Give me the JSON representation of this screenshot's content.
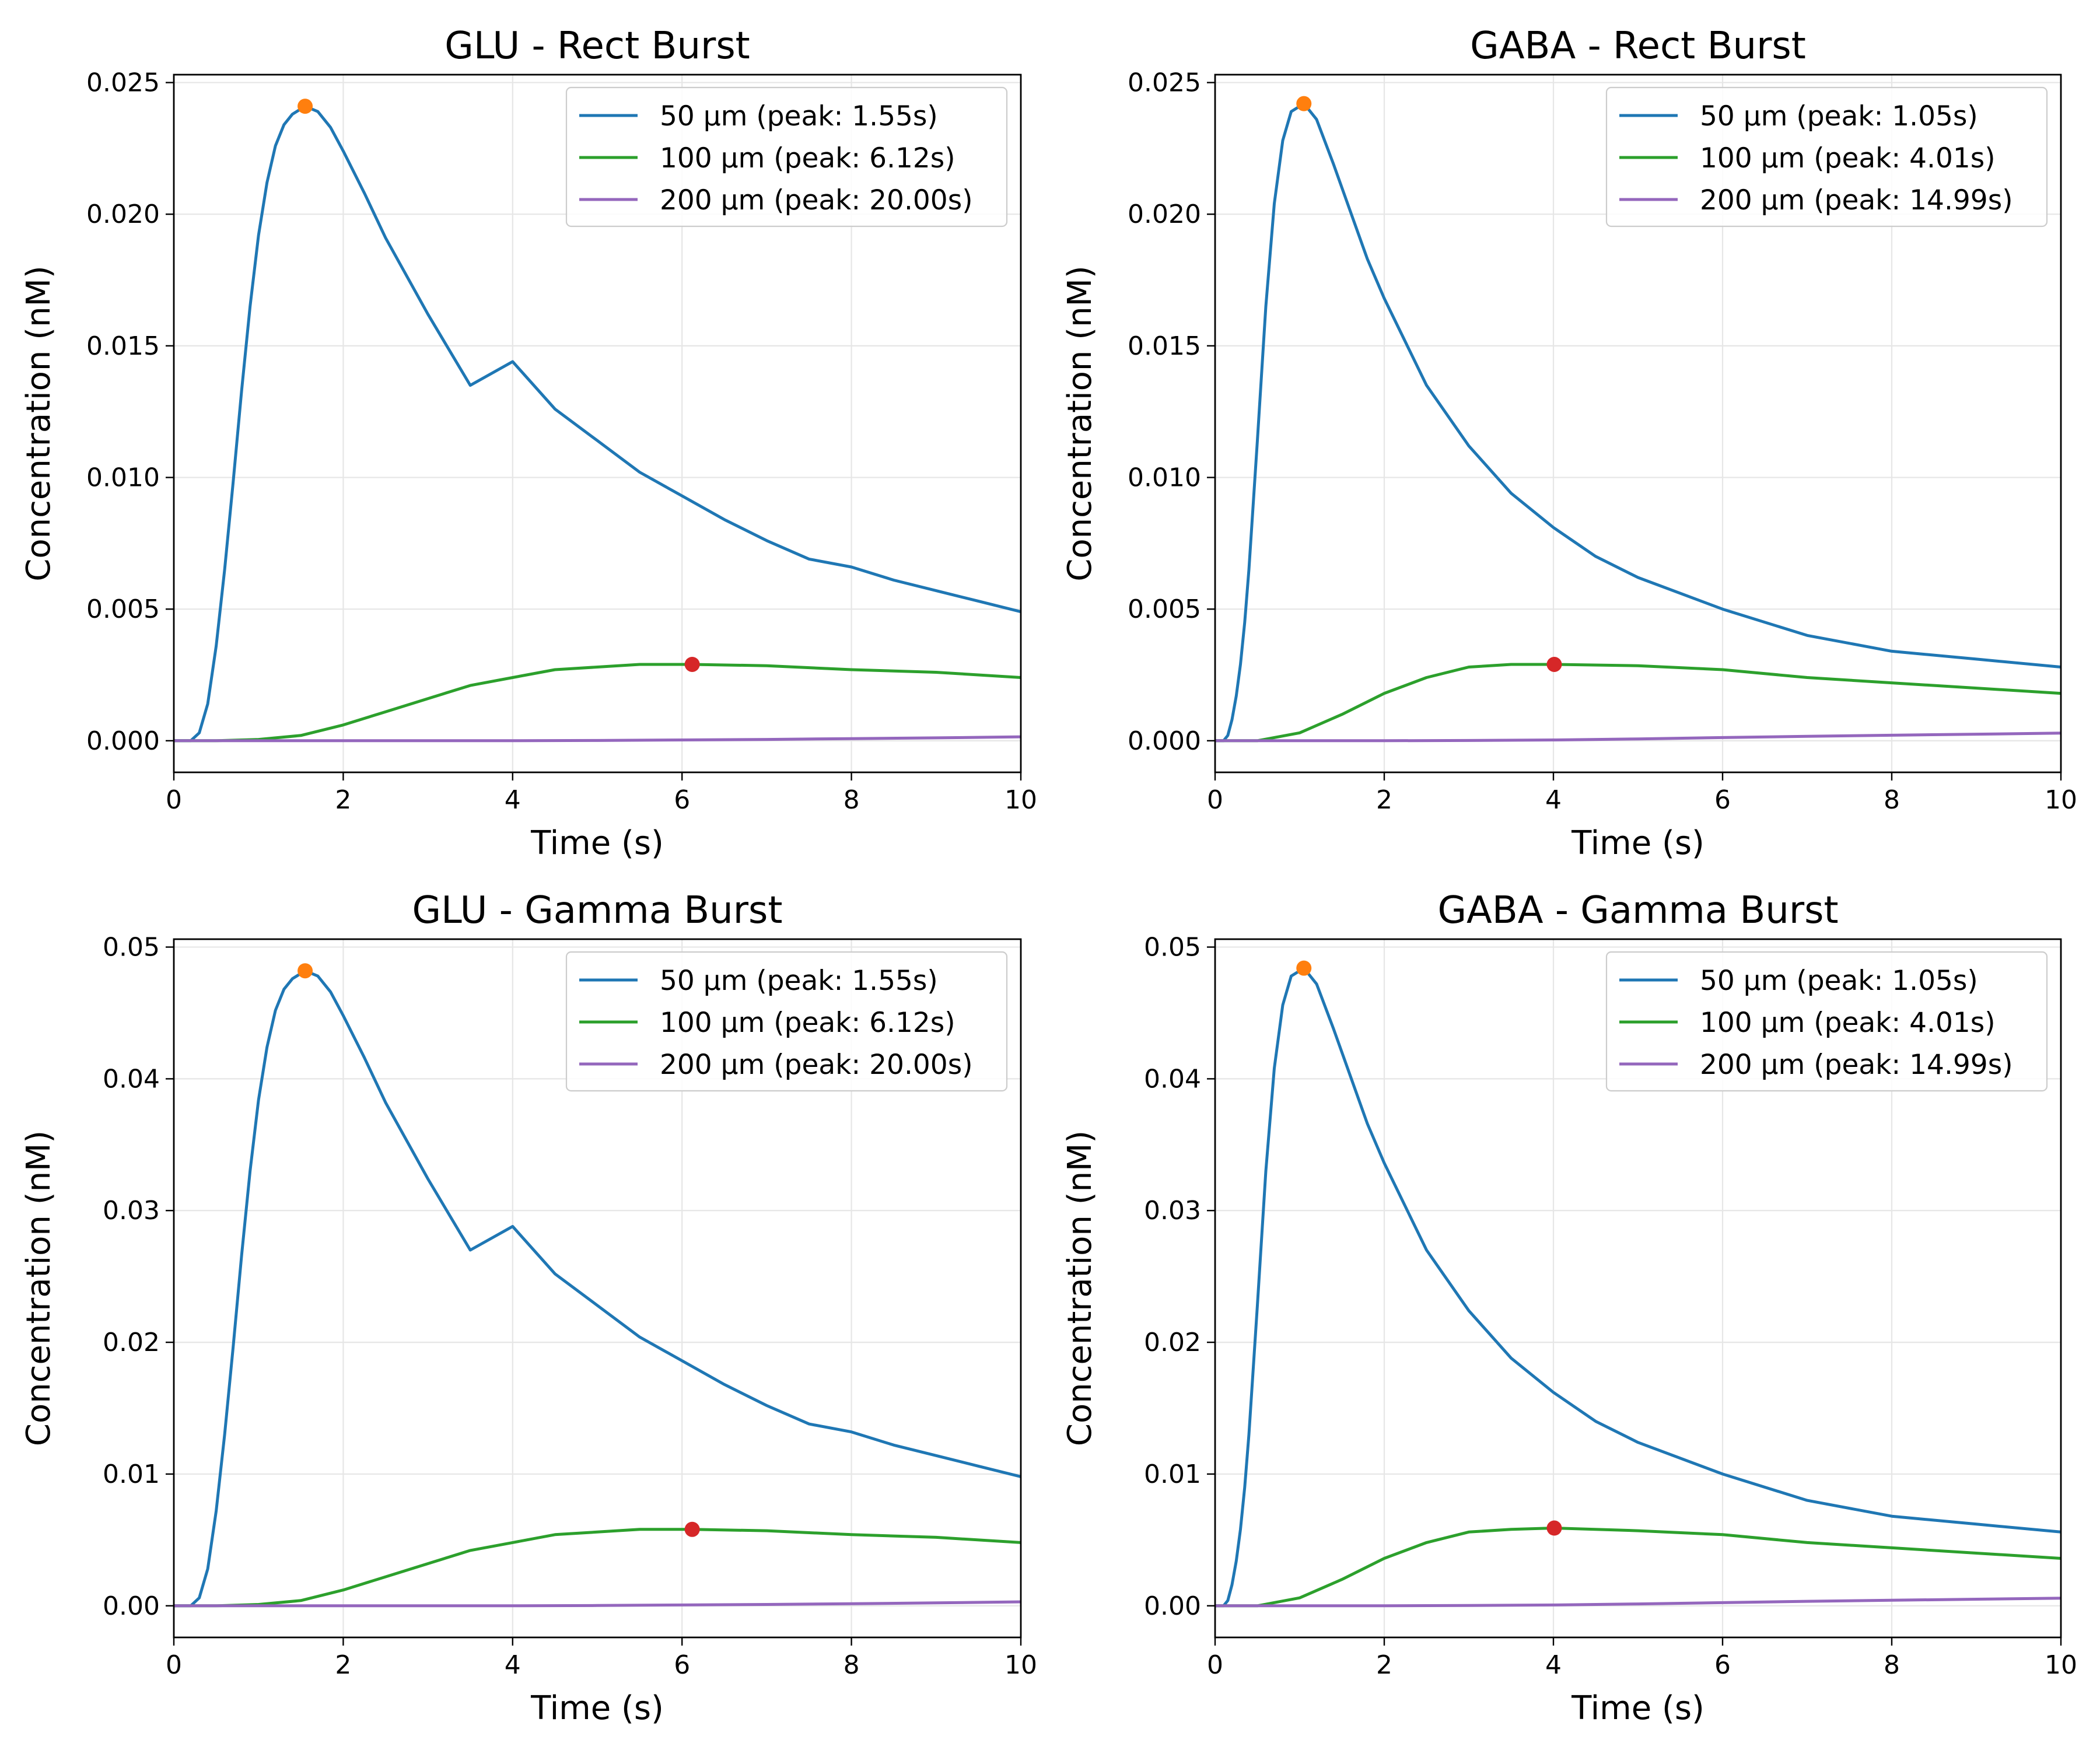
{
  "chart_data": [
    {
      "type": "line",
      "title": "GLU - Rect Burst",
      "xlabel": "Time (s)",
      "ylabel": "Concentration (nM)",
      "xlim": [
        0,
        10
      ],
      "ylim": [
        -0.0012,
        0.0253
      ],
      "xticks": [
        "0",
        "2",
        "4",
        "6",
        "8",
        "10"
      ],
      "yticks": [
        "0.000",
        "0.005",
        "0.010",
        "0.015",
        "0.020",
        "0.025"
      ],
      "grid": true,
      "legend_position": "top-right",
      "series": [
        {
          "name": "50 µm (peak: 1.55s)",
          "color": "#1f77b4",
          "x": [
            0,
            0.2,
            0.3,
            0.4,
            0.5,
            0.6,
            0.7,
            0.8,
            0.9,
            1.0,
            1.1,
            1.2,
            1.3,
            1.4,
            1.55,
            1.7,
            1.85,
            2.0,
            2.25,
            2.5,
            3.0,
            3.5,
            4.0,
            4.5,
            5.0,
            5.5,
            6.0,
            6.5,
            7.0,
            7.5,
            8.0,
            8.5,
            9.0,
            9.5,
            10.0
          ],
          "y": [
            0,
            0,
            0.0003,
            0.0014,
            0.0036,
            0.0065,
            0.0098,
            0.0133,
            0.0165,
            0.0192,
            0.0212,
            0.0226,
            0.0234,
            0.0238,
            0.0241,
            0.0239,
            0.0233,
            0.0224,
            0.0208,
            0.0191,
            0.0162,
            0.0135,
            0.0144,
            0.0126,
            0.0114,
            0.0102,
            0.0093,
            0.0084,
            0.0076,
            0.0069,
            0.0066,
            0.0061,
            0.0057,
            0.0053,
            0.0049
          ]
        },
        {
          "name": "100 µm (peak: 6.12s)",
          "color": "#2ca02c",
          "x": [
            0,
            0.5,
            1.0,
            1.5,
            2.0,
            2.5,
            3.0,
            3.5,
            4.0,
            4.5,
            5.0,
            5.5,
            6.12,
            7.0,
            8.0,
            9.0,
            10.0
          ],
          "y": [
            0,
            0,
            5e-05,
            0.0002,
            0.0006,
            0.0011,
            0.0016,
            0.0021,
            0.0024,
            0.0027,
            0.0028,
            0.0029,
            0.0029,
            0.00285,
            0.0027,
            0.0026,
            0.0024
          ]
        },
        {
          "name": "200 µm (peak: 20.00s)",
          "color": "#9467bd",
          "x": [
            0,
            2,
            4,
            5,
            6,
            7,
            8,
            9,
            10
          ],
          "y": [
            0,
            0,
            0,
            1e-05,
            3e-05,
            5e-05,
            8e-05,
            0.00011,
            0.00015
          ]
        }
      ],
      "peak_markers": [
        {
          "x": 1.55,
          "y": 0.0241,
          "color": "#ff7f0e"
        },
        {
          "x": 6.12,
          "y": 0.0029,
          "color": "#d62728"
        }
      ]
    },
    {
      "type": "line",
      "title": "GABA - Rect Burst",
      "xlabel": "Time (s)",
      "ylabel": "Concentration (nM)",
      "xlim": [
        0,
        10
      ],
      "ylim": [
        -0.0012,
        0.0253
      ],
      "xticks": [
        "0",
        "2",
        "4",
        "6",
        "8",
        "10"
      ],
      "yticks": [
        "0.000",
        "0.005",
        "0.010",
        "0.015",
        "0.020",
        "0.025"
      ],
      "grid": true,
      "legend_position": "top-right",
      "series": [
        {
          "name": "50 µm (peak: 1.05s)",
          "color": "#1f77b4",
          "x": [
            0,
            0.1,
            0.15,
            0.2,
            0.25,
            0.3,
            0.35,
            0.4,
            0.5,
            0.6,
            0.7,
            0.8,
            0.9,
            1.05,
            1.2,
            1.4,
            1.6,
            1.8,
            2.0,
            2.5,
            3.0,
            3.5,
            4.0,
            4.5,
            5.0,
            6.0,
            7.0,
            8.0,
            9.0,
            10.0
          ],
          "y": [
            0,
            0,
            0.0002,
            0.0008,
            0.0017,
            0.0029,
            0.0045,
            0.0065,
            0.0114,
            0.0165,
            0.0204,
            0.0228,
            0.0239,
            0.0242,
            0.0236,
            0.0219,
            0.0201,
            0.0183,
            0.0168,
            0.0135,
            0.0112,
            0.0094,
            0.0081,
            0.007,
            0.0062,
            0.005,
            0.004,
            0.0034,
            0.0031,
            0.0028
          ]
        },
        {
          "name": "100 µm (peak: 4.01s)",
          "color": "#2ca02c",
          "x": [
            0,
            0.5,
            1.0,
            1.5,
            2.0,
            2.5,
            3.0,
            3.5,
            4.01,
            5.0,
            6.0,
            7.0,
            8.0,
            9.0,
            10.0
          ],
          "y": [
            0,
            0,
            0.0003,
            0.001,
            0.0018,
            0.0024,
            0.0028,
            0.0029,
            0.0029,
            0.00285,
            0.0027,
            0.0024,
            0.0022,
            0.002,
            0.0018
          ]
        },
        {
          "name": "200 µm (peak: 14.99s)",
          "color": "#9467bd",
          "x": [
            0,
            2,
            3,
            4,
            5,
            6,
            7,
            8,
            9,
            10
          ],
          "y": [
            0,
            0,
            1e-05,
            3e-05,
            7e-05,
            0.00012,
            0.00017,
            0.00021,
            0.00025,
            0.00029
          ]
        }
      ],
      "peak_markers": [
        {
          "x": 1.05,
          "y": 0.0242,
          "color": "#ff7f0e"
        },
        {
          "x": 4.01,
          "y": 0.0029,
          "color": "#d62728"
        }
      ]
    },
    {
      "type": "line",
      "title": "GLU - Gamma Burst",
      "xlabel": "Time (s)",
      "ylabel": "Concentration (nM)",
      "xlim": [
        0,
        10
      ],
      "ylim": [
        -0.0024,
        0.0506
      ],
      "xticks": [
        "0",
        "2",
        "4",
        "6",
        "8",
        "10"
      ],
      "yticks": [
        "0.00",
        "0.01",
        "0.02",
        "0.03",
        "0.04",
        "0.05"
      ],
      "grid": true,
      "legend_position": "top-right",
      "series": [
        {
          "name": "50 µm (peak: 1.55s)",
          "color": "#1f77b4",
          "x": [
            0,
            0.2,
            0.3,
            0.4,
            0.5,
            0.6,
            0.7,
            0.8,
            0.9,
            1.0,
            1.1,
            1.2,
            1.3,
            1.4,
            1.55,
            1.7,
            1.85,
            2.0,
            2.25,
            2.5,
            3.0,
            3.5,
            4.0,
            4.5,
            5.0,
            5.5,
            6.0,
            6.5,
            7.0,
            7.5,
            8.0,
            8.5,
            9.0,
            9.5,
            10.0
          ],
          "y": [
            0,
            0,
            0.0006,
            0.0028,
            0.0072,
            0.013,
            0.0196,
            0.0266,
            0.033,
            0.0384,
            0.0424,
            0.0452,
            0.0468,
            0.0476,
            0.0482,
            0.0478,
            0.0466,
            0.0448,
            0.0416,
            0.0382,
            0.0324,
            0.027,
            0.0288,
            0.0252,
            0.0228,
            0.0204,
            0.0186,
            0.0168,
            0.0152,
            0.0138,
            0.0132,
            0.0122,
            0.0114,
            0.0106,
            0.0098
          ]
        },
        {
          "name": "100 µm (peak: 6.12s)",
          "color": "#2ca02c",
          "x": [
            0,
            0.5,
            1.0,
            1.5,
            2.0,
            2.5,
            3.0,
            3.5,
            4.0,
            4.5,
            5.0,
            5.5,
            6.12,
            7.0,
            8.0,
            9.0,
            10.0
          ],
          "y": [
            0,
            0,
            0.0001,
            0.0004,
            0.0012,
            0.0022,
            0.0032,
            0.0042,
            0.0048,
            0.0054,
            0.0056,
            0.0058,
            0.0058,
            0.0057,
            0.0054,
            0.0052,
            0.0048
          ]
        },
        {
          "name": "200 µm (peak: 20.00s)",
          "color": "#9467bd",
          "x": [
            0,
            2,
            4,
            5,
            6,
            7,
            8,
            9,
            10
          ],
          "y": [
            0,
            0,
            0,
            2e-05,
            6e-05,
            0.0001,
            0.00016,
            0.00022,
            0.0003
          ]
        }
      ],
      "peak_markers": [
        {
          "x": 1.55,
          "y": 0.0482,
          "color": "#ff7f0e"
        },
        {
          "x": 6.12,
          "y": 0.0058,
          "color": "#d62728"
        }
      ]
    },
    {
      "type": "line",
      "title": "GABA - Gamma Burst",
      "xlabel": "Time (s)",
      "ylabel": "Concentration (nM)",
      "xlim": [
        0,
        10
      ],
      "ylim": [
        -0.0024,
        0.0506
      ],
      "xticks": [
        "0",
        "2",
        "4",
        "6",
        "8",
        "10"
      ],
      "yticks": [
        "0.00",
        "0.01",
        "0.02",
        "0.03",
        "0.04",
        "0.05"
      ],
      "grid": true,
      "legend_position": "top-right",
      "series": [
        {
          "name": "50 µm (peak: 1.05s)",
          "color": "#1f77b4",
          "x": [
            0,
            0.1,
            0.15,
            0.2,
            0.25,
            0.3,
            0.35,
            0.4,
            0.5,
            0.6,
            0.7,
            0.8,
            0.9,
            1.05,
            1.2,
            1.4,
            1.6,
            1.8,
            2.0,
            2.5,
            3.0,
            3.5,
            4.0,
            4.5,
            5.0,
            6.0,
            7.0,
            8.0,
            9.0,
            10.0
          ],
          "y": [
            0,
            0,
            0.0004,
            0.0016,
            0.0034,
            0.0058,
            0.009,
            0.013,
            0.0228,
            0.033,
            0.0408,
            0.0456,
            0.0478,
            0.0484,
            0.0472,
            0.0438,
            0.0402,
            0.0366,
            0.0336,
            0.027,
            0.0224,
            0.0188,
            0.0162,
            0.014,
            0.0124,
            0.01,
            0.008,
            0.0068,
            0.0062,
            0.0056
          ]
        },
        {
          "name": "100 µm (peak: 4.01s)",
          "color": "#2ca02c",
          "x": [
            0,
            0.5,
            1.0,
            1.5,
            2.0,
            2.5,
            3.0,
            3.5,
            4.01,
            5.0,
            6.0,
            7.0,
            8.0,
            9.0,
            10.0
          ],
          "y": [
            0,
            0,
            0.0006,
            0.002,
            0.0036,
            0.0048,
            0.0056,
            0.0058,
            0.0059,
            0.0057,
            0.0054,
            0.0048,
            0.0044,
            0.004,
            0.0036
          ]
        },
        {
          "name": "200 µm (peak: 14.99s)",
          "color": "#9467bd",
          "x": [
            0,
            2,
            3,
            4,
            5,
            6,
            7,
            8,
            9,
            10
          ],
          "y": [
            0,
            0,
            2e-05,
            6e-05,
            0.00014,
            0.00024,
            0.00034,
            0.00042,
            0.0005,
            0.00058
          ]
        }
      ],
      "peak_markers": [
        {
          "x": 1.05,
          "y": 0.0484,
          "color": "#ff7f0e"
        },
        {
          "x": 4.01,
          "y": 0.0059,
          "color": "#d62728"
        }
      ]
    }
  ]
}
